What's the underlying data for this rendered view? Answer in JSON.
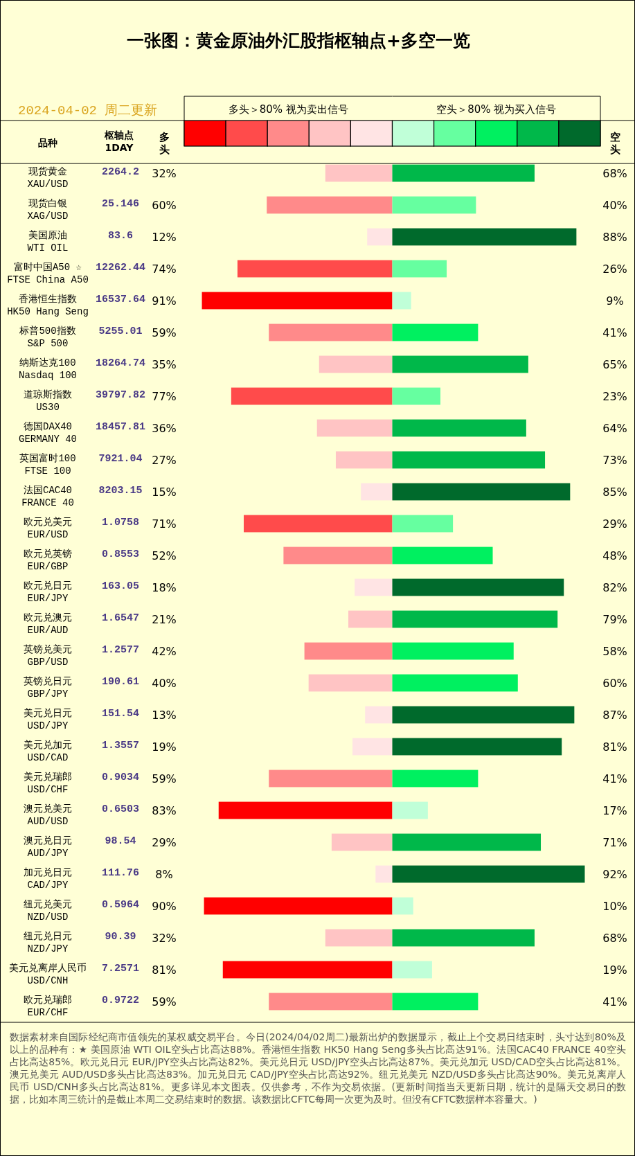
{
  "chart_data": [
    {
      "type": "bar",
      "orientation": "horizontal",
      "title": "一张图：黄金原油外汇股指枢轴点+多空一览",
      "subtitle": "2024-04-02 周二更新",
      "ylabel": "品种",
      "categories": [
        "现货黄金\nXAU/USD",
        "现货白银\nXAG/USD",
        "美国原油\nWTI OIL",
        "富时中国A50 ☆\nFTSE China A50",
        "香港恒生指数\nHK50 Hang Seng",
        "标普500指数\nS&P 500",
        "纳斯达克100\nNasdaq 100",
        "道琼斯指数\nUS30",
        "德国DAX40\nGERMANY 40",
        "英国富时100\nFTSE 100",
        "法国CAC40\nFRANCE 40",
        "欧元兑美元\nEUR/USD",
        "欧元兑英镑\nEUR/GBP",
        "欧元兑日元\nEUR/JPY",
        "欧元兑澳元\nEUR/AUD",
        "英镑兑美元\nGBP/USD",
        "英镑兑日元\nGBP/JPY",
        "美元兑日元\nUSD/JPY",
        "美元兑加元\nUSD/CAD",
        "美元兑瑞郎\nUSD/CHF",
        "澳元兑美元\nAUD/USD",
        "澳元兑日元\nAUD/JPY",
        "加元兑日元\nCAD/JPY",
        "纽元兑美元\nNZD/USD",
        "纽元兑日元\nNZD/JPY",
        "美元兑离岸人民币\nUSD/CNH",
        "欧元兑瑞郎\nEUR/CHF"
      ],
      "series": [
        {
          "name": "多头",
          "values": [
            32,
            60,
            12,
            74,
            91,
            59,
            35,
            77,
            36,
            27,
            15,
            71,
            52,
            18,
            21,
            42,
            40,
            13,
            19,
            59,
            83,
            29,
            8,
            90,
            32,
            81,
            59
          ],
          "value_labels": [
            "32%",
            "60%",
            "12%",
            "74%",
            "91%",
            "59%",
            "35%",
            "77%",
            "36%",
            "27%",
            "15%",
            "71%",
            "52%",
            "18%",
            "21%",
            "42%",
            "40%",
            "13%",
            "19%",
            "59%",
            "83%",
            "29%",
            "8%",
            "90%",
            "32%",
            "81%",
            "59%"
          ],
          "colors": [
            "#ffc4c4",
            "#ff8a8a",
            "#ffe4e4",
            "#ff4b4b",
            "#ff0000",
            "#ff8a8a",
            "#ffc4c4",
            "#ff4b4b",
            "#ffc4c4",
            "#ffc4c4",
            "#ffe4e4",
            "#ff4b4b",
            "#ff8a8a",
            "#ffe4e4",
            "#ffc4c4",
            "#ff8a8a",
            "#ffc4c4",
            "#ffe4e4",
            "#ffe4e4",
            "#ff8a8a",
            "#ff0000",
            "#ffc4c4",
            "#ffe4e4",
            "#ff0000",
            "#ffc4c4",
            "#ff0000",
            "#ff8a8a"
          ]
        }
      ],
      "legend": "top",
      "legend_title": "多头＞80% 视为卖出信号",
      "annotations": [
        "枢轴点\n1DAY",
        "2264.2",
        "25.146",
        "83.6",
        "12262.44",
        "16537.64",
        "5255.01",
        "18264.74",
        "39797.82",
        "18457.81",
        "7921.04",
        "8203.15",
        "1.0758",
        "0.8553",
        "163.05",
        "1.6547",
        "1.2577",
        "190.61",
        "151.54",
        "1.3557",
        "0.9034",
        "0.6503",
        "98.54",
        "111.76",
        "0.5964",
        "90.39",
        "7.2571",
        "0.9722",
        "数据素材来自国际经纪商市值领先的某权威交易平台。今日(2024/04/02周二)最新出炉的数据显示，截止上个交易日结束时，头寸达到80%及以上的品种有：★ 美国原油 WTI OIL空头占比高达88%。香港恒生指数 HK50 Hang Seng多头占比高达91%。法国CAC40 FRANCE 40空头占比高达85%。欧元兑日元 EUR/JPY空头占比高达82%。美元兑日元 USD/JPY空头占比高达87%。美元兑加元 USD/CAD空头占比高达81%。澳元兑美元 AUD/USD多头占比高达83%。加元兑日元 CAD/JPY空头占比高达92%。纽元兑美元 NZD/USD多头占比高达90%。美元兑离岸人民币 USD/CNH多头占比高达81%。更多详见本文图表。仅供参考，不作为交易依据。(更新时间指当天更新日期，统计的是隔天交易日的数据，比如本周三统计的是截止本周二交易结束时的数据。该数据比CFTC每周一次更为及时。但没有CFTC数据样本容量大。)"
      ]
    },
    {
      "type": "bar",
      "orientation": "horizontal",
      "categories": [
        null,
        null,
        null,
        null,
        null,
        null,
        null,
        null,
        null,
        null,
        null,
        null,
        null,
        null,
        null,
        null,
        null,
        null,
        null,
        null,
        null,
        null,
        null,
        null,
        null,
        null,
        null
      ],
      "series": [
        {
          "name": "空头",
          "values": [
            68,
            40,
            88,
            26,
            9,
            41,
            65,
            23,
            64,
            73,
            85,
            29,
            48,
            82,
            79,
            58,
            60,
            87,
            81,
            41,
            17,
            71,
            92,
            10,
            68,
            19,
            41
          ],
          "value_labels": [
            "68%",
            "40%",
            "88%",
            "26%",
            "9%",
            "41%",
            "65%",
            "23%",
            "64%",
            "73%",
            "85%",
            "29%",
            "48%",
            "82%",
            "79%",
            "58%",
            "60%",
            "87%",
            "81%",
            "41%",
            "17%",
            "71%",
            "92%",
            "10%",
            "68%",
            "19%",
            "41%"
          ],
          "colors": [
            "#00b84a",
            "#66ffa0",
            "#006a2c",
            "#66ffa0",
            "#c0ffd8",
            "#00f060",
            "#00b84a",
            "#66ffa0",
            "#00b84a",
            "#00b84a",
            "#006a2c",
            "#66ffa0",
            "#00f060",
            "#006a2c",
            "#00b84a",
            "#00f060",
            "#00f060",
            "#006a2c",
            "#006a2c",
            "#00f060",
            "#c0ffd8",
            "#00b84a",
            "#006a2c",
            "#c0ffd8",
            "#00b84a",
            "#c0ffd8",
            "#00f060"
          ]
        }
      ],
      "legend": "top",
      "legend_title": "空头＞80% 视为买入信号"
    }
  ]
}
